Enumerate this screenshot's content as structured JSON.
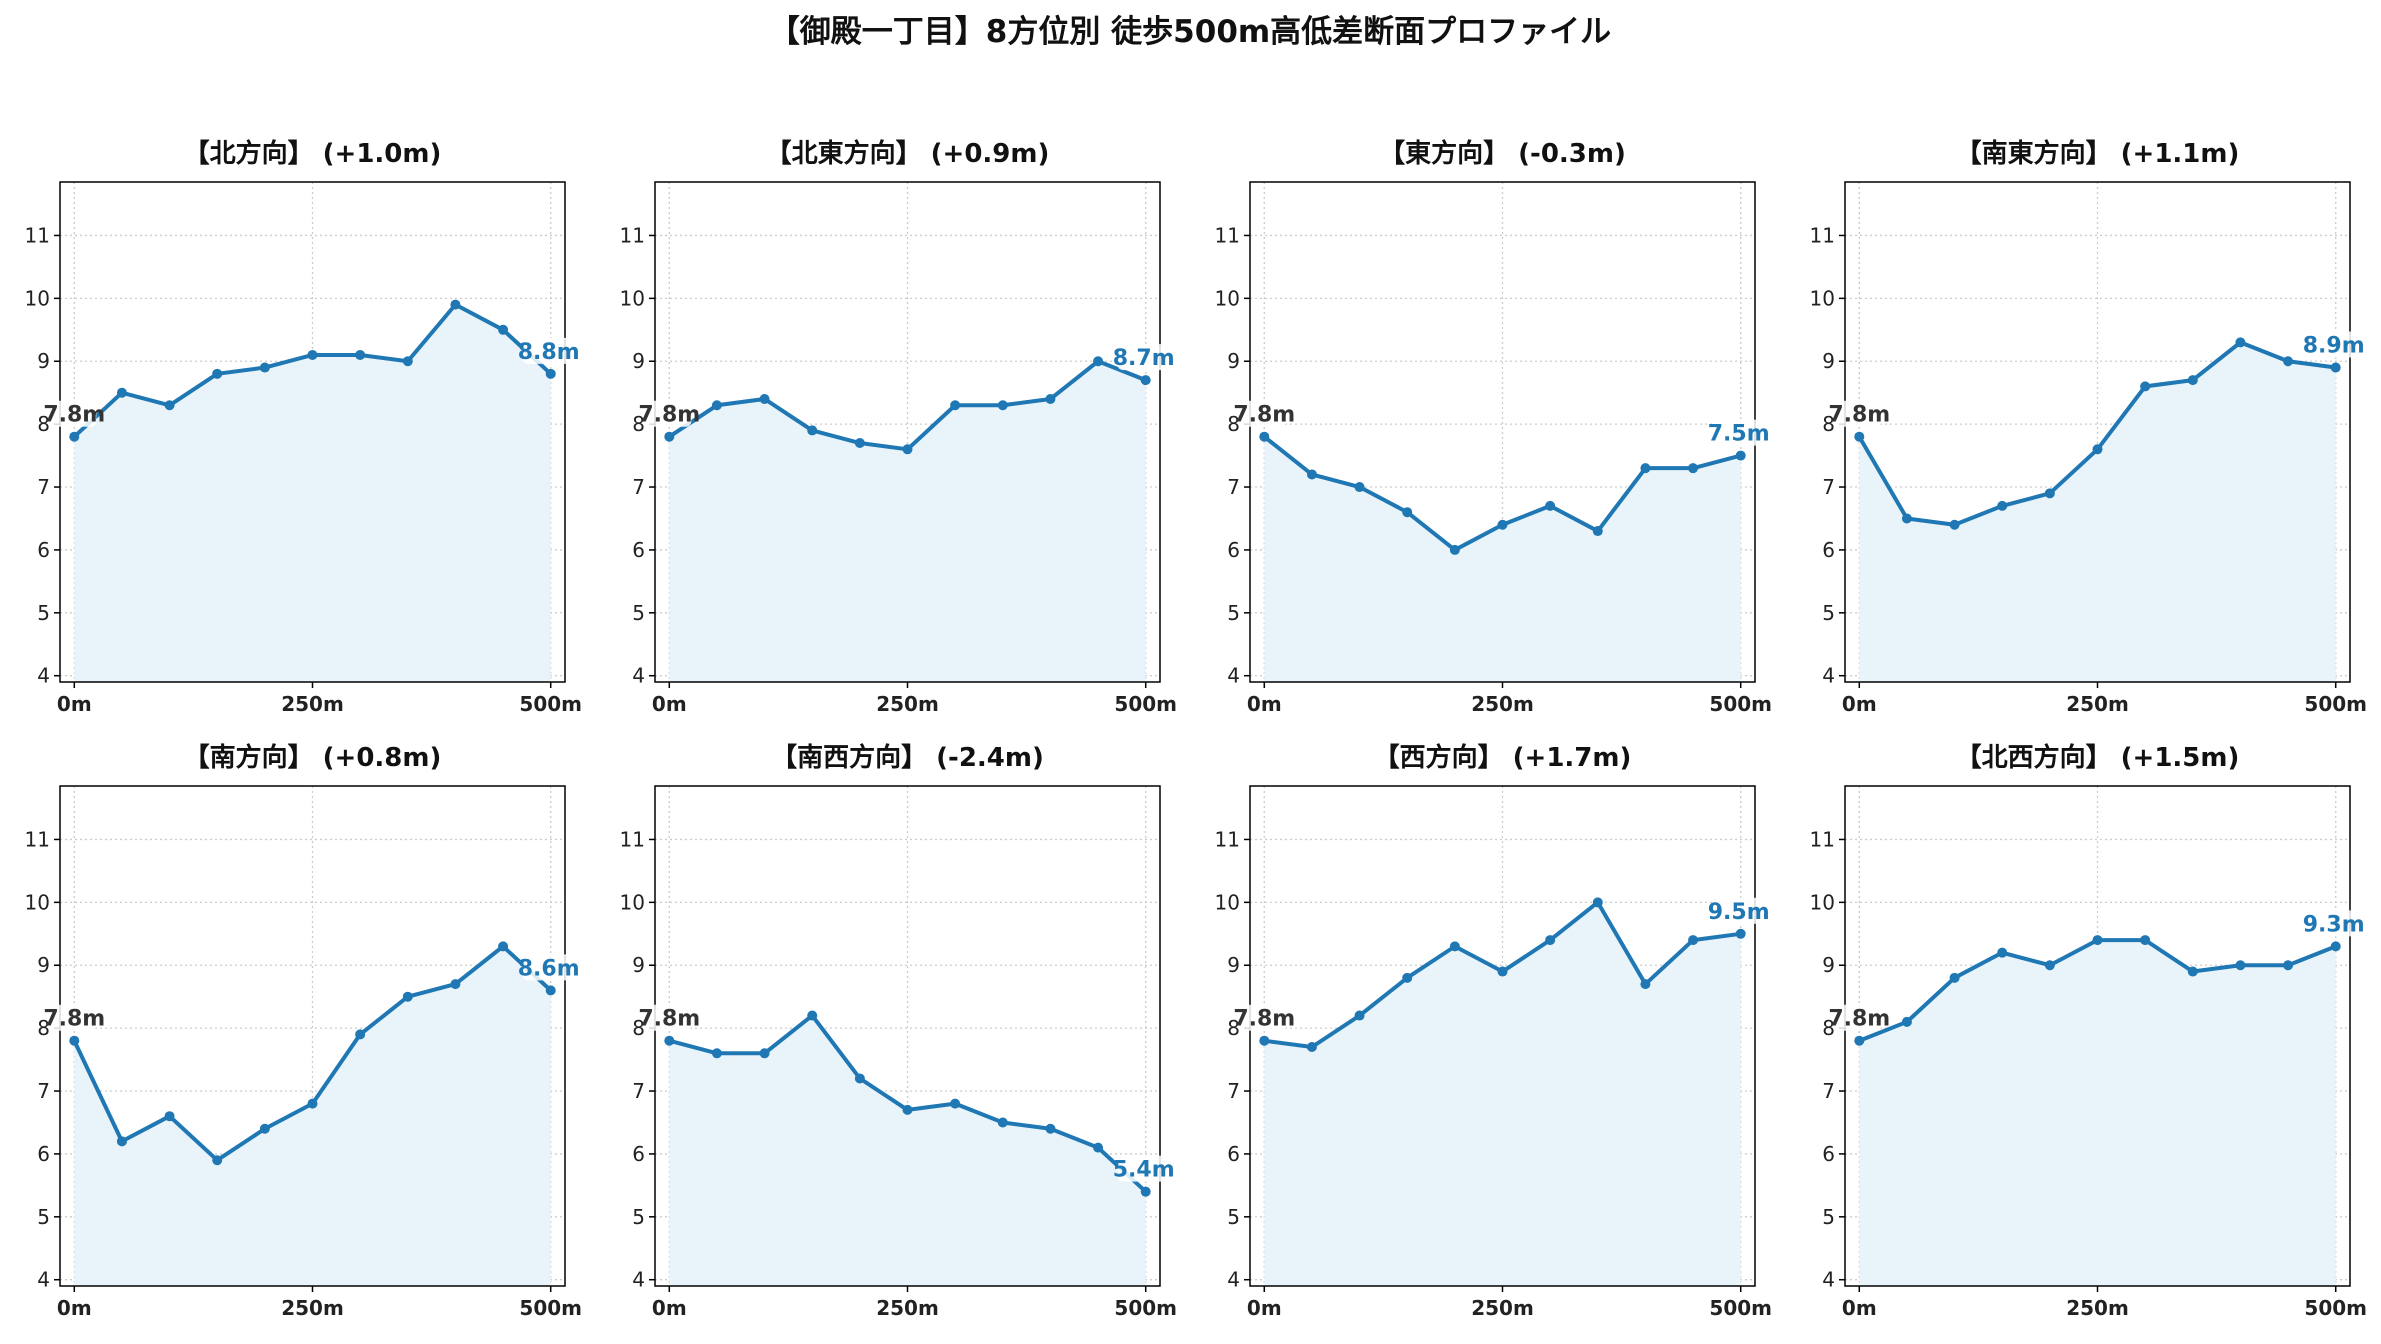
{
  "figure": {
    "title": "【御殿一丁目】8方位別 徒歩500m高低差断面プロファイル"
  },
  "chart_data": [
    {
      "type": "area",
      "title": "【北方向】 (+1.0m)",
      "x": [
        0,
        50,
        100,
        150,
        200,
        250,
        300,
        350,
        400,
        450,
        500
      ],
      "values": [
        7.8,
        8.5,
        8.3,
        8.8,
        8.9,
        9.1,
        9.1,
        9.0,
        9.9,
        9.5,
        8.8
      ],
      "xticks": [
        "0m",
        "250m",
        "500m"
      ],
      "xtick_values": [
        0,
        250,
        500
      ],
      "yticks": [
        4,
        5,
        6,
        7,
        8,
        9,
        10,
        11
      ],
      "xlim": [
        -15,
        515
      ],
      "ylim": [
        3.9,
        11.85
      ],
      "start_label": "7.8m",
      "end_label": "8.8m",
      "grid": true
    },
    {
      "type": "area",
      "title": "【北東方向】 (+0.9m)",
      "x": [
        0,
        50,
        100,
        150,
        200,
        250,
        300,
        350,
        400,
        450,
        500
      ],
      "values": [
        7.8,
        8.3,
        8.4,
        7.9,
        7.7,
        7.6,
        8.3,
        8.3,
        8.4,
        9.0,
        8.7
      ],
      "xticks": [
        "0m",
        "250m",
        "500m"
      ],
      "xtick_values": [
        0,
        250,
        500
      ],
      "yticks": [
        4,
        5,
        6,
        7,
        8,
        9,
        10,
        11
      ],
      "xlim": [
        -15,
        515
      ],
      "ylim": [
        3.9,
        11.85
      ],
      "start_label": "7.8m",
      "end_label": "8.7m",
      "grid": true
    },
    {
      "type": "area",
      "title": "【東方向】 (-0.3m)",
      "x": [
        0,
        50,
        100,
        150,
        200,
        250,
        300,
        350,
        400,
        450,
        500
      ],
      "values": [
        7.8,
        7.2,
        7.0,
        6.6,
        6.0,
        6.4,
        6.7,
        6.3,
        7.3,
        7.3,
        7.5
      ],
      "xticks": [
        "0m",
        "250m",
        "500m"
      ],
      "xtick_values": [
        0,
        250,
        500
      ],
      "yticks": [
        4,
        5,
        6,
        7,
        8,
        9,
        10,
        11
      ],
      "xlim": [
        -15,
        515
      ],
      "ylim": [
        3.9,
        11.85
      ],
      "start_label": "7.8m",
      "end_label": "7.5m",
      "grid": true
    },
    {
      "type": "area",
      "title": "【南東方向】 (+1.1m)",
      "x": [
        0,
        50,
        100,
        150,
        200,
        250,
        300,
        350,
        400,
        450,
        500
      ],
      "values": [
        7.8,
        6.5,
        6.4,
        6.7,
        6.9,
        7.6,
        8.6,
        8.7,
        9.3,
        9.0,
        8.9
      ],
      "xticks": [
        "0m",
        "250m",
        "500m"
      ],
      "xtick_values": [
        0,
        250,
        500
      ],
      "yticks": [
        4,
        5,
        6,
        7,
        8,
        9,
        10,
        11
      ],
      "xlim": [
        -15,
        515
      ],
      "ylim": [
        3.9,
        11.85
      ],
      "start_label": "7.8m",
      "end_label": "8.9m",
      "grid": true
    },
    {
      "type": "area",
      "title": "【南方向】 (+0.8m)",
      "x": [
        0,
        50,
        100,
        150,
        200,
        250,
        300,
        350,
        400,
        450,
        500
      ],
      "values": [
        7.8,
        6.2,
        6.6,
        5.9,
        6.4,
        6.8,
        7.9,
        8.5,
        8.7,
        9.3,
        8.6
      ],
      "xticks": [
        "0m",
        "250m",
        "500m"
      ],
      "xtick_values": [
        0,
        250,
        500
      ],
      "yticks": [
        4,
        5,
        6,
        7,
        8,
        9,
        10,
        11
      ],
      "xlim": [
        -15,
        515
      ],
      "ylim": [
        3.9,
        11.85
      ],
      "start_label": "7.8m",
      "end_label": "8.6m",
      "grid": true
    },
    {
      "type": "area",
      "title": "【南西方向】 (-2.4m)",
      "x": [
        0,
        50,
        100,
        150,
        200,
        250,
        300,
        350,
        400,
        450,
        500
      ],
      "values": [
        7.8,
        7.6,
        7.6,
        8.2,
        7.2,
        6.7,
        6.8,
        6.5,
        6.4,
        6.1,
        5.4
      ],
      "xticks": [
        "0m",
        "250m",
        "500m"
      ],
      "xtick_values": [
        0,
        250,
        500
      ],
      "yticks": [
        4,
        5,
        6,
        7,
        8,
        9,
        10,
        11
      ],
      "xlim": [
        -15,
        515
      ],
      "ylim": [
        3.9,
        11.85
      ],
      "start_label": "7.8m",
      "end_label": "5.4m",
      "grid": true
    },
    {
      "type": "area",
      "title": "【西方向】 (+1.7m)",
      "x": [
        0,
        50,
        100,
        150,
        200,
        250,
        300,
        350,
        400,
        450,
        500
      ],
      "values": [
        7.8,
        7.7,
        8.2,
        8.8,
        9.3,
        8.9,
        9.4,
        10.0,
        8.7,
        9.4,
        9.5
      ],
      "xticks": [
        "0m",
        "250m",
        "500m"
      ],
      "xtick_values": [
        0,
        250,
        500
      ],
      "yticks": [
        4,
        5,
        6,
        7,
        8,
        9,
        10,
        11
      ],
      "xlim": [
        -15,
        515
      ],
      "ylim": [
        3.9,
        11.85
      ],
      "start_label": "7.8m",
      "end_label": "9.5m",
      "grid": true
    },
    {
      "type": "area",
      "title": "【北西方向】 (+1.5m)",
      "x": [
        0,
        50,
        100,
        150,
        200,
        250,
        300,
        350,
        400,
        450,
        500
      ],
      "values": [
        7.8,
        8.1,
        8.8,
        9.2,
        9.0,
        9.4,
        9.4,
        8.9,
        9.0,
        9.0,
        9.3
      ],
      "xticks": [
        "0m",
        "250m",
        "500m"
      ],
      "xtick_values": [
        0,
        250,
        500
      ],
      "yticks": [
        4,
        5,
        6,
        7,
        8,
        9,
        10,
        11
      ],
      "xlim": [
        -15,
        515
      ],
      "ylim": [
        3.9,
        11.85
      ],
      "start_label": "7.8m",
      "end_label": "9.3m",
      "grid": true
    }
  ],
  "colors": {
    "line": "#1f77b4",
    "point": "#1f77b4",
    "fill": "#e8f4fa",
    "start_label": "#333333",
    "end_label": "#1f77b4",
    "grid": "#cccccc",
    "axis": "#000000"
  }
}
